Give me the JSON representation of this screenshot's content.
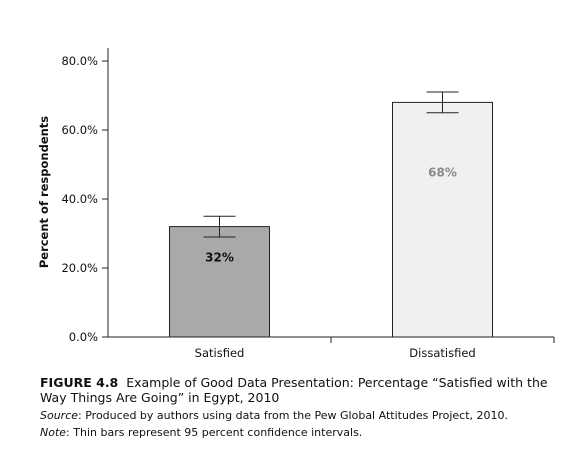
{
  "chart_data": {
    "type": "bar",
    "categories": [
      "Satisfied",
      "Dissatisfied"
    ],
    "values": [
      32,
      68
    ],
    "value_labels": [
      "32%",
      "68%"
    ],
    "error_bars": [
      {
        "low": 29,
        "high": 35
      },
      {
        "low": 65,
        "high": 71
      }
    ],
    "ylabel": "Percent of respondents",
    "xlabel": "",
    "ylim": [
      0,
      80
    ],
    "y_ticks": [
      0,
      20,
      40,
      60,
      80
    ],
    "y_tick_labels": [
      "0.0%",
      "20.0%",
      "40.0%",
      "60.0%",
      "80.0%"
    ],
    "grid": false,
    "colors": {
      "satisfied_bar": "#a9a9a9",
      "dissatisfied_bar": "#f0f0f0",
      "satisfied_label": "#111111",
      "dissatisfied_label": "#8a8a8a",
      "bar_outline": "#222222",
      "axis": "#222222"
    }
  },
  "caption": {
    "figure_number": "FIGURE 4.8",
    "figure_text": "Example of Good Data Presentation: Percentage “Satisfied with the Way Things Are Going” in Egypt, 2010",
    "source_label": "Source",
    "source_text": ": Produced by authors using data from the Pew Global Attitudes Project, 2010.",
    "note_label": "Note",
    "note_text": ": Thin bars represent 95 percent confidence intervals."
  }
}
